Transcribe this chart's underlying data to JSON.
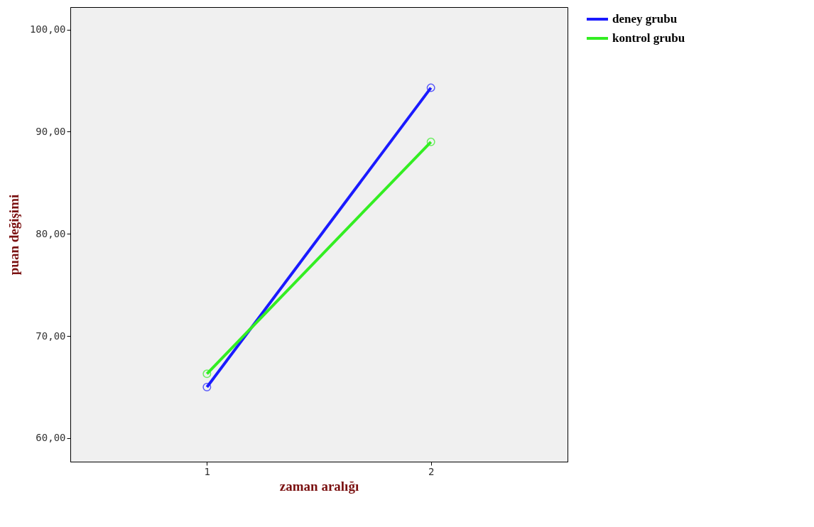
{
  "chart_data": {
    "type": "line",
    "xlabel": "zaman aralığı",
    "ylabel": "puan değişimi",
    "x": [
      1,
      2
    ],
    "series": [
      {
        "name": "deney grubu",
        "color": "#1a1aff",
        "values": [
          65.0,
          94.3
        ]
      },
      {
        "name": "kontrol grubu",
        "color": "#33ee22",
        "values": [
          66.3,
          89.0
        ]
      }
    ],
    "xlim": [
      0.39,
      2.61
    ],
    "xticks": [
      1,
      2
    ],
    "ylim": [
      57.7,
      102.2
    ],
    "yticks": [
      {
        "value": 60,
        "label": "60,00"
      },
      {
        "value": 70,
        "label": "70,00"
      },
      {
        "value": 80,
        "label": "80,00"
      },
      {
        "value": 90,
        "label": "90,00"
      },
      {
        "value": 100,
        "label": "100,00"
      }
    ],
    "grid": false,
    "legend": "right",
    "marker": "circle",
    "line_style": "solid"
  }
}
